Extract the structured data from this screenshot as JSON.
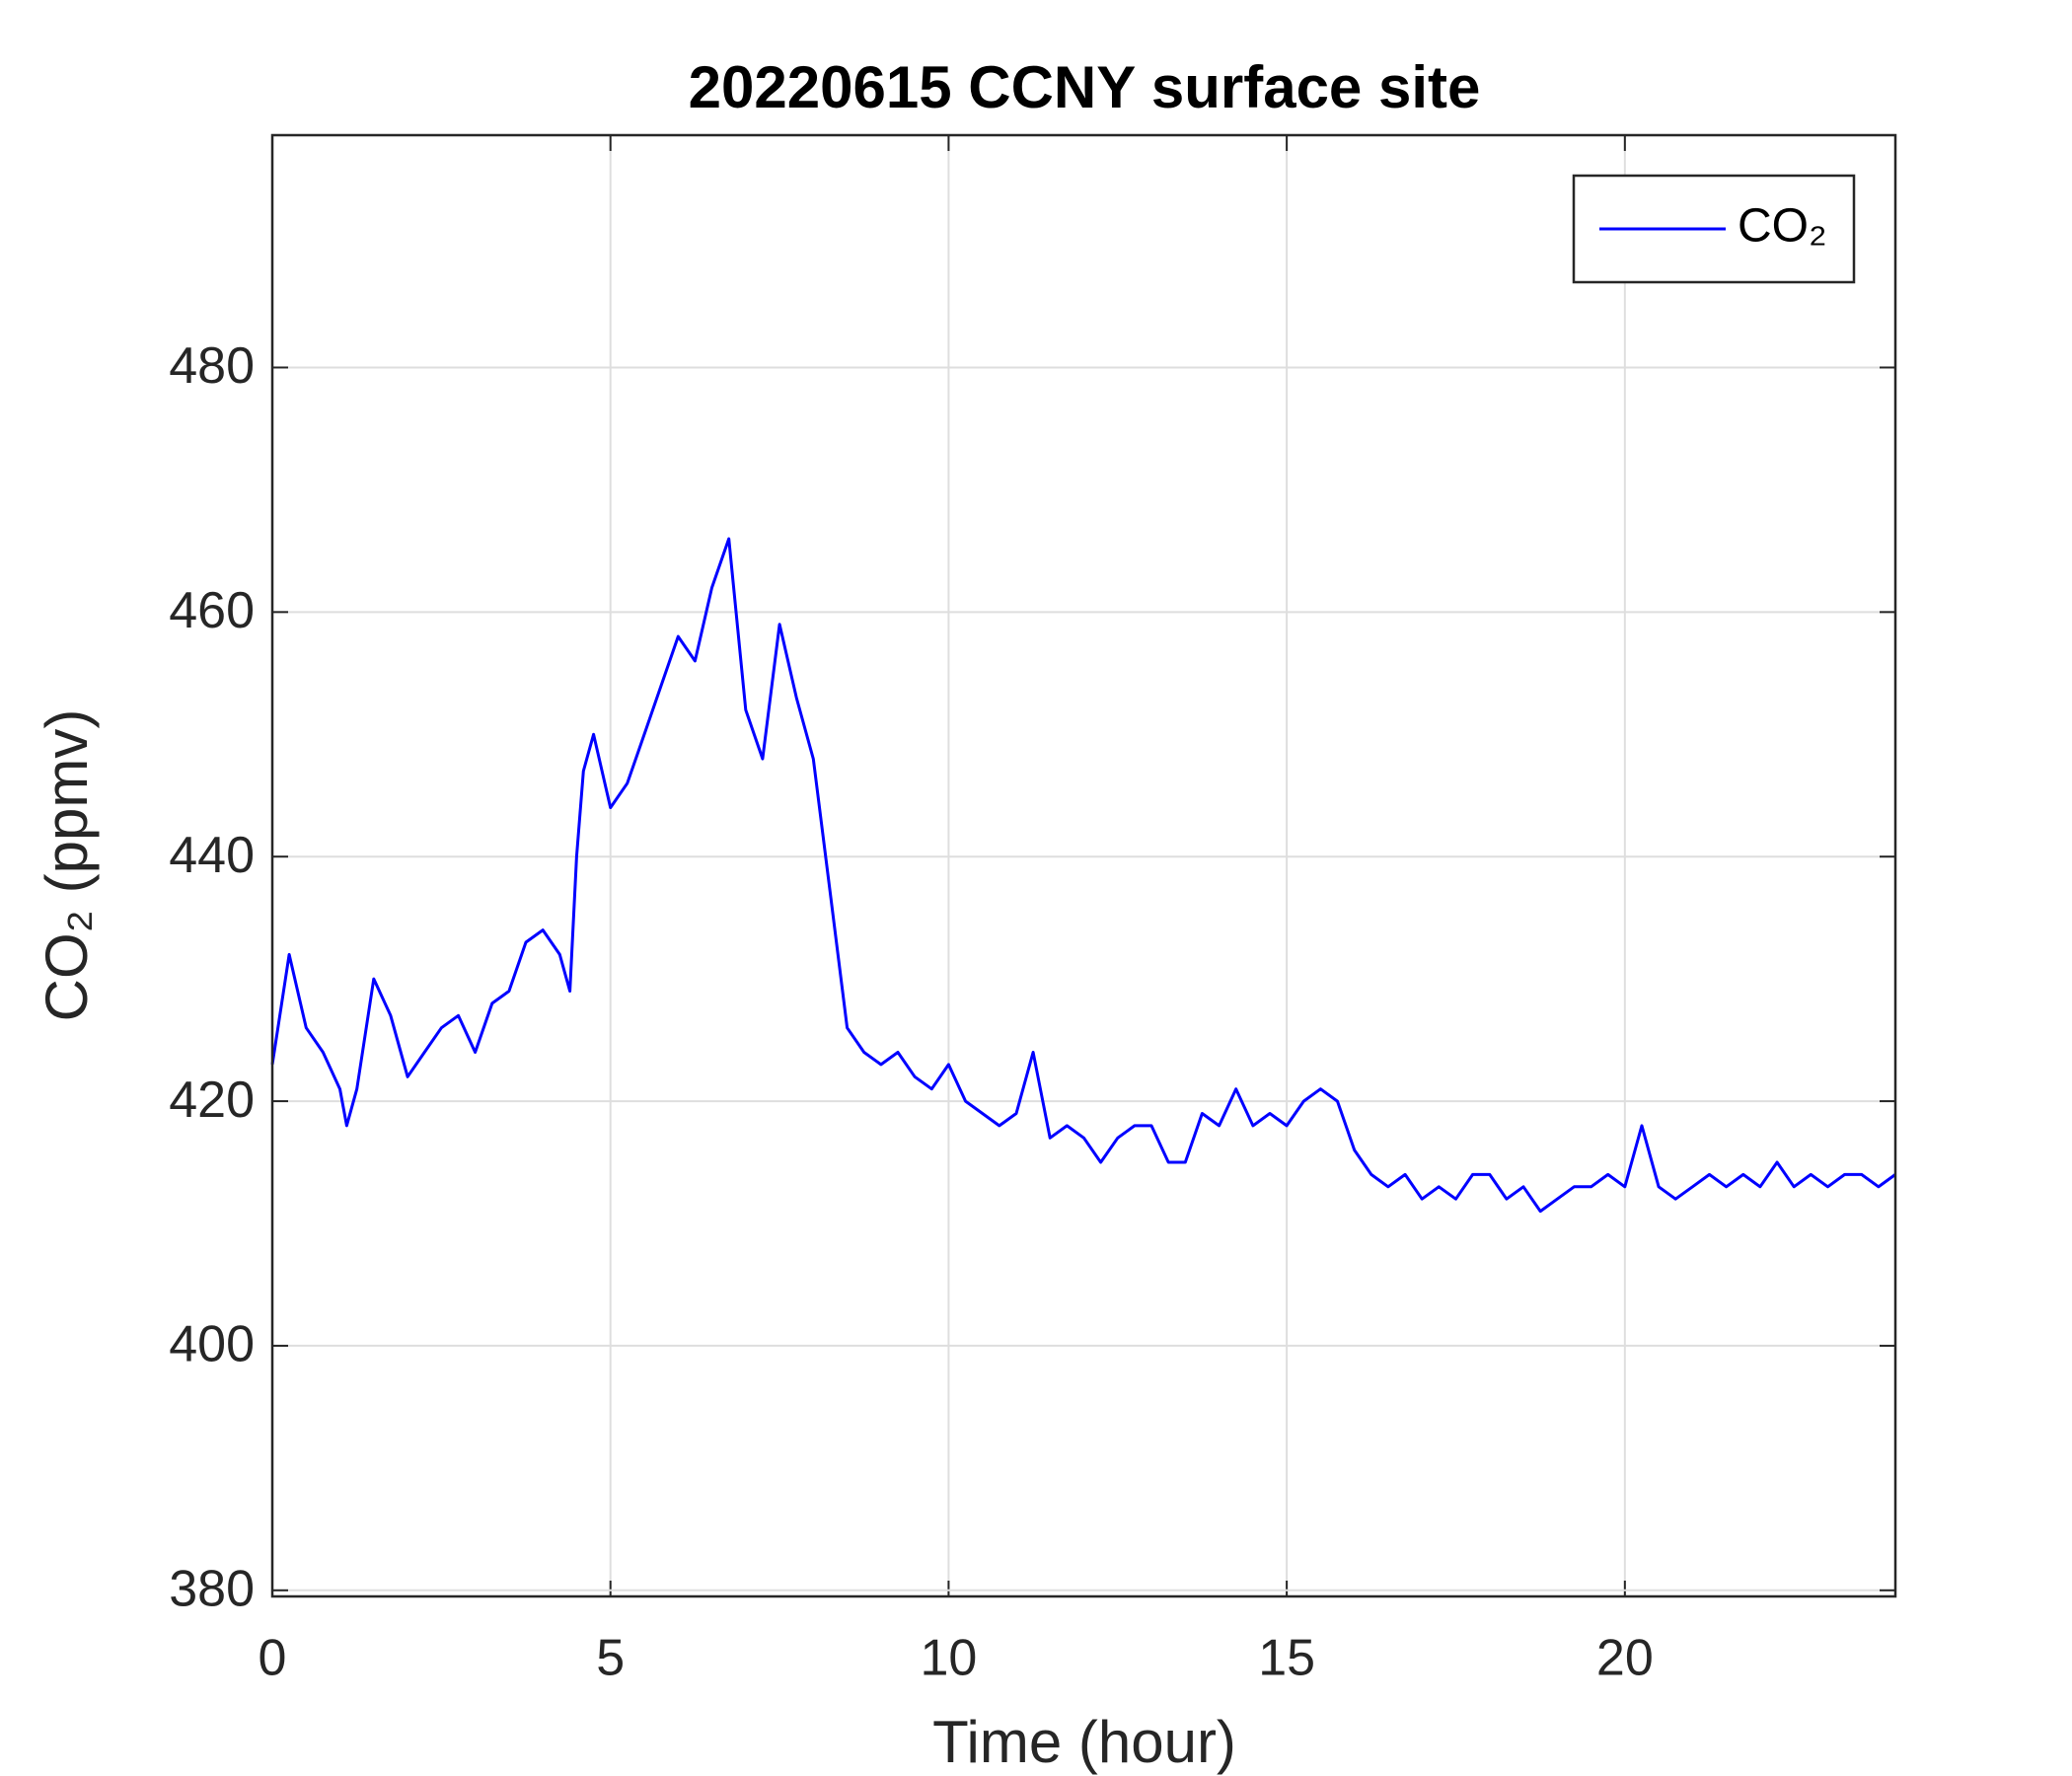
{
  "chart_data": {
    "type": "line",
    "title": "20220615 CCNY surface site",
    "x_label": "Time (hour)",
    "y_label": "CO₂ (ppmv)",
    "x": [
      0,
      0.25,
      0.5,
      0.75,
      1.0,
      1.1,
      1.25,
      1.5,
      1.75,
      2.0,
      2.25,
      2.5,
      2.75,
      3.0,
      3.25,
      3.5,
      3.75,
      4.0,
      4.25,
      4.4,
      4.5,
      4.6,
      4.75,
      5.0,
      5.25,
      5.5,
      5.75,
      6.0,
      6.25,
      6.5,
      6.75,
      7.0,
      7.25,
      7.5,
      7.75,
      8.0,
      8.25,
      8.5,
      8.75,
      9.0,
      9.25,
      9.5,
      9.75,
      10.0,
      10.25,
      10.5,
      10.75,
      11.0,
      11.25,
      11.5,
      11.75,
      12.0,
      12.25,
      12.5,
      12.75,
      13.0,
      13.25,
      13.5,
      13.75,
      14.0,
      14.25,
      14.5,
      14.75,
      15.0,
      15.25,
      15.5,
      15.75,
      16.0,
      16.25,
      16.5,
      16.75,
      17.0,
      17.25,
      17.5,
      17.75,
      18.0,
      18.25,
      18.5,
      18.75,
      19.0,
      19.25,
      19.5,
      19.75,
      20.0,
      20.25,
      20.5,
      20.75,
      21.0,
      21.25,
      21.5,
      21.75,
      22.0,
      22.25,
      22.5,
      22.75,
      23.0,
      23.25,
      23.5,
      23.75,
      24
    ],
    "series": [
      {
        "name": "CO₂",
        "color": "#0000ff",
        "values": [
          423,
          432,
          426,
          424,
          421,
          418,
          421,
          430,
          427,
          422,
          424,
          426,
          427,
          424,
          428,
          429,
          433,
          434,
          432,
          429,
          440,
          447,
          450,
          444,
          446,
          450,
          454,
          458,
          456,
          462,
          466,
          452,
          448,
          459,
          453,
          448,
          437,
          426,
          424,
          423,
          424,
          422,
          421,
          423,
          420,
          419,
          418,
          419,
          424,
          417,
          418,
          417,
          415,
          417,
          418,
          418,
          415,
          415,
          419,
          418,
          421,
          418,
          419,
          418,
          420,
          421,
          420,
          416,
          414,
          413,
          414,
          412,
          413,
          412,
          414,
          414,
          412,
          413,
          411,
          412,
          413,
          413,
          414,
          413,
          418,
          413,
          412,
          413,
          414,
          413,
          414,
          413,
          415,
          413,
          414,
          413,
          414,
          414,
          413,
          414
        ]
      }
    ],
    "xlim": [
      0,
      24
    ],
    "ylim": [
      379.5,
      499
    ],
    "xticks": [
      0,
      5,
      10,
      15,
      20
    ],
    "yticks": [
      380,
      400,
      420,
      440,
      460,
      480
    ],
    "grid": true,
    "legend": "upper right"
  }
}
